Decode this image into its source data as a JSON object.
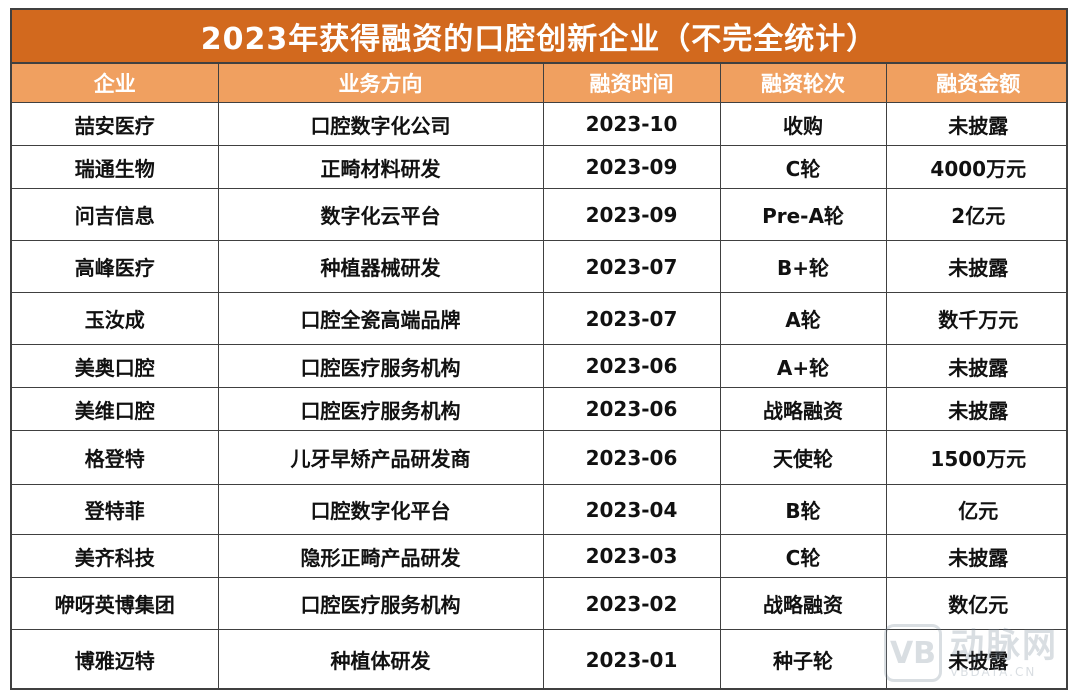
{
  "title": "2023年获得融资的口腔创新企业（不完全统计）",
  "table": {
    "headers": [
      "企业",
      "业务方向",
      "融资时间",
      "融资轮次",
      "融资金额"
    ],
    "rows": [
      [
        "喆安医疗",
        "口腔数字化公司",
        "2023-10",
        "收购",
        "未披露"
      ],
      [
        "瑞通生物",
        "正畸材料研发",
        "2023-09",
        "C轮",
        "4000万元"
      ],
      [
        "问吉信息",
        "数字化云平台",
        "2023-09",
        "Pre-A轮",
        "2亿元"
      ],
      [
        "高峰医疗",
        "种植器械研发",
        "2023-07",
        "B+轮",
        "未披露"
      ],
      [
        "玉汝成",
        "口腔全瓷高端品牌",
        "2023-07",
        "A轮",
        "数千万元"
      ],
      [
        "美奥口腔",
        "口腔医疗服务机构",
        "2023-06",
        "A+轮",
        "未披露"
      ],
      [
        "美维口腔",
        "口腔医疗服务机构",
        "2023-06",
        "战略融资",
        "未披露"
      ],
      [
        "格登特",
        "儿牙早矫产品研发商",
        "2023-06",
        "天使轮",
        "1500万元"
      ],
      [
        "登特菲",
        "口腔数字化平台",
        "2023-04",
        "B轮",
        "亿元"
      ],
      [
        "美齐科技",
        "隐形正畸产品研发",
        "2023-03",
        "C轮",
        "未披露"
      ],
      [
        "咿呀英博集团",
        "口腔医疗服务机构",
        "2023-02",
        "战略融资",
        "数亿元"
      ],
      [
        "博雅迈特",
        "种植体研发",
        "2023-01",
        "种子轮",
        "未披露"
      ]
    ]
  },
  "watermark": {
    "logo_text": "VB",
    "name": "动脉网",
    "url": "VBDATA.CN"
  },
  "colors": {
    "title_bg": "#d2691e",
    "header_bg": "#f0a060",
    "border": "#404040"
  }
}
